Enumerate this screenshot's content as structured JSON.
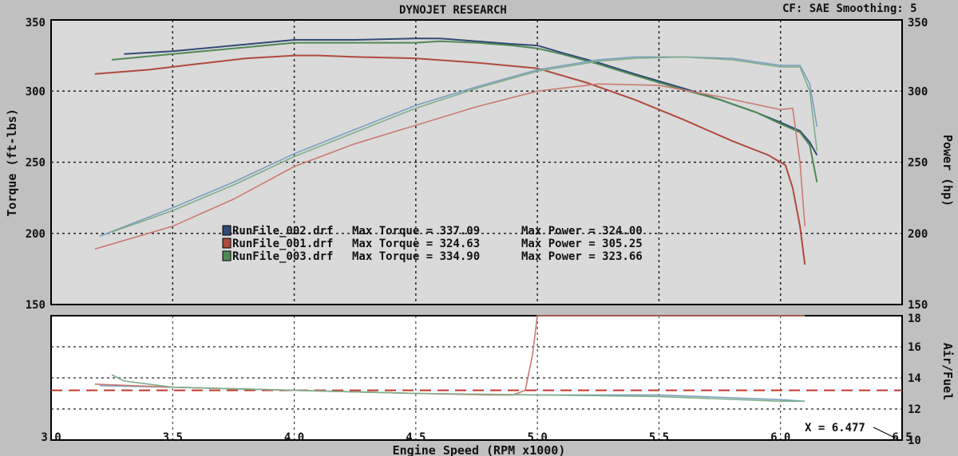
{
  "header": {
    "title": "DYNOJET RESEARCH",
    "cf_setting": "CF: SAE  Smoothing: 5"
  },
  "colors": {
    "background": "#c0c0c0",
    "plot_bg": "#dadada",
    "grid": "#222222",
    "run_002": "#2f4a78",
    "run_001": "#b04a3c",
    "run_003": "#4f8a55",
    "run_002_power": "#7a9fc0",
    "run_001_power": "#cc7a70",
    "run_003_power": "#7fae8a"
  },
  "chart_data": [
    {
      "type": "line",
      "name_key": "top",
      "xlabel": "Engine Speed (RPM x1000)",
      "ylabel": "Torque (ft-lbs)",
      "y2label": "Power (hp)",
      "xlim": [
        3.0,
        6.5
      ],
      "ylim": [
        150,
        350
      ],
      "y2lim": [
        150,
        350
      ],
      "xticks": [
        "3.0",
        "3.5",
        "4.0",
        "4.5",
        "5.0",
        "5.5",
        "6.0",
        "6.5"
      ],
      "yticks": [
        "150",
        "200",
        "250",
        "300",
        "350"
      ],
      "y2ticks": [
        "150",
        "200",
        "250",
        "300",
        "350"
      ],
      "grid": true,
      "legend": [
        {
          "name": "RunFile_002.drf",
          "max_torque_label": "Max Torque = 337.09",
          "max_power_label": "Max Power = 324.00",
          "color": "#2f4a78"
        },
        {
          "name": "RunFile_001.drf",
          "max_torque_label": "Max Torque = 324.63",
          "max_power_label": "Max Power = 305.25",
          "color": "#b04a3c"
        },
        {
          "name": "RunFile_003.drf",
          "max_torque_label": "Max Torque = 334.90",
          "max_power_label": "Max Power = 323.66",
          "color": "#4f8a55"
        }
      ],
      "series": [
        {
          "name": "RunFile_002.drf",
          "kind": "torque",
          "color": "#2f4a78",
          "x": [
            3.3,
            3.5,
            3.75,
            4.0,
            4.25,
            4.5,
            4.6,
            4.75,
            4.9,
            5.0,
            5.1,
            5.25,
            5.4,
            5.6,
            5.75,
            5.9,
            6.0,
            6.08,
            6.12,
            6.15
          ],
          "y": [
            326,
            328,
            332,
            336,
            336,
            337,
            337,
            335,
            333,
            332,
            327,
            320,
            312,
            302,
            294,
            285,
            278,
            272,
            264,
            255
          ]
        },
        {
          "name": "RunFile_001.drf",
          "kind": "torque",
          "color": "#b04a3c",
          "x": [
            3.18,
            3.4,
            3.6,
            3.8,
            4.0,
            4.1,
            4.25,
            4.5,
            4.75,
            5.0,
            5.2,
            5.4,
            5.6,
            5.8,
            5.95,
            6.02,
            6.05,
            6.08,
            6.1
          ],
          "y": [
            312,
            315,
            319,
            323,
            325,
            325,
            324,
            323,
            320,
            316,
            306,
            294,
            280,
            265,
            255,
            248,
            232,
            205,
            178
          ]
        },
        {
          "name": "RunFile_003.drf",
          "kind": "torque",
          "color": "#4f8a55",
          "x": [
            3.25,
            3.5,
            3.75,
            4.0,
            4.25,
            4.5,
            4.6,
            4.75,
            4.9,
            5.0,
            5.1,
            5.25,
            5.4,
            5.6,
            5.75,
            5.9,
            6.0,
            6.08,
            6.12,
            6.15
          ],
          "y": [
            322,
            326,
            330,
            334,
            334,
            334,
            335,
            334,
            332,
            330,
            326,
            319,
            311,
            301,
            294,
            285,
            277,
            271,
            262,
            236
          ]
        },
        {
          "name": "RunFile_002.drf",
          "kind": "power",
          "color": "#7a9fc0",
          "x": [
            3.2,
            3.5,
            3.75,
            4.0,
            4.25,
            4.5,
            4.75,
            5.0,
            5.25,
            5.4,
            5.6,
            5.8,
            6.0,
            6.08,
            6.12,
            6.15
          ],
          "y": [
            198,
            218,
            236,
            256,
            273,
            290,
            303,
            315,
            322,
            324,
            324,
            323,
            318,
            318,
            305,
            275
          ]
        },
        {
          "name": "RunFile_001.drf",
          "kind": "power",
          "color": "#cc7a70",
          "x": [
            3.18,
            3.5,
            3.75,
            4.0,
            4.25,
            4.5,
            4.75,
            5.0,
            5.25,
            5.5,
            5.75,
            6.0,
            6.05,
            6.08,
            6.1
          ],
          "y": [
            189,
            205,
            224,
            247,
            263,
            276,
            289,
            300,
            305,
            304,
            296,
            287,
            288,
            250,
            205
          ]
        },
        {
          "name": "RunFile_003.drf",
          "kind": "power",
          "color": "#7fae8a",
          "x": [
            3.25,
            3.5,
            3.75,
            4.0,
            4.25,
            4.5,
            4.75,
            5.0,
            5.25,
            5.4,
            5.6,
            5.8,
            6.0,
            6.08,
            6.12,
            6.15
          ],
          "y": [
            201,
            216,
            234,
            254,
            271,
            288,
            302,
            314,
            321,
            323,
            324,
            322,
            317,
            317,
            300,
            258
          ]
        }
      ]
    },
    {
      "type": "line",
      "name_key": "bottom",
      "xlabel": "Engine Speed (RPM x1000)",
      "y2label": "Air/Fuel",
      "xlim": [
        3.0,
        6.5
      ],
      "ylim": [
        10,
        18
      ],
      "y2ticks": [
        "10",
        "12",
        "14",
        "16",
        "18"
      ],
      "grid": true,
      "reference_value": 13.2,
      "annotation": "X = 6.477",
      "series": [
        {
          "name": "RunFile_002.drf",
          "color": "#7a9fc0",
          "x": [
            3.2,
            3.5,
            4.0,
            4.5,
            5.0,
            5.5,
            6.0,
            6.1
          ],
          "y": [
            13.5,
            13.4,
            13.2,
            13.0,
            12.9,
            12.9,
            12.6,
            12.5
          ]
        },
        {
          "name": "RunFile_001.drf",
          "color": "#cc7a70",
          "x": [
            3.18,
            3.5,
            4.0,
            4.5,
            4.8,
            4.9,
            4.95,
            4.98,
            5.0,
            5.5,
            6.0,
            6.1
          ],
          "y": [
            13.6,
            13.4,
            13.2,
            13.0,
            12.9,
            12.9,
            13.2,
            15.5,
            18,
            18,
            18,
            18
          ]
        },
        {
          "name": "RunFile_003.drf",
          "color": "#7fae8a",
          "x": [
            3.25,
            3.3,
            3.5,
            4.0,
            4.5,
            5.0,
            5.5,
            6.0,
            6.1
          ],
          "y": [
            14.2,
            13.8,
            13.4,
            13.2,
            13.0,
            12.9,
            12.8,
            12.5,
            12.5
          ]
        }
      ]
    }
  ]
}
